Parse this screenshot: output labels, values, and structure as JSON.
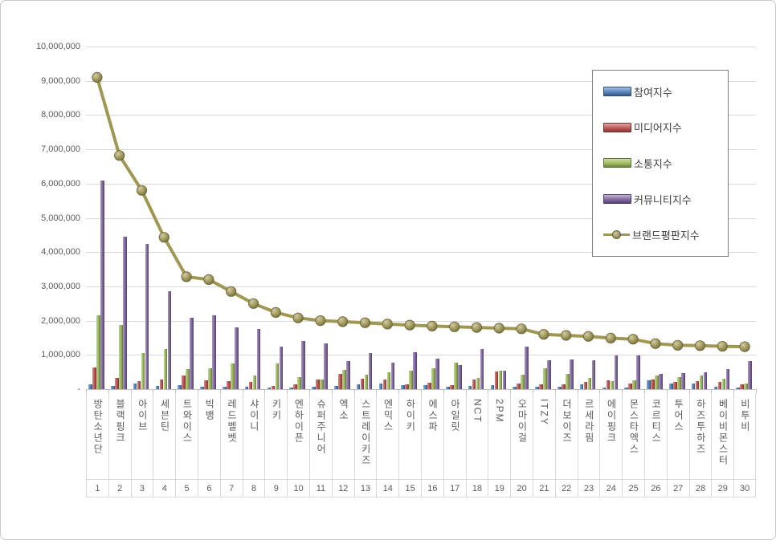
{
  "chart_data": {
    "type": "bar+line",
    "title": "",
    "categories": [
      "방탄소년단",
      "블랙핑크",
      "아이브",
      "세븐틴",
      "트와이스",
      "빅뱅",
      "레드벨벳",
      "샤이니",
      "키키",
      "엔하이픈",
      "슈퍼주니어",
      "엑소",
      "스트레이키즈",
      "엔믹스",
      "하이키",
      "에스파",
      "아일릿",
      "NCT",
      "2PM",
      "오마이걸",
      "ITZY",
      "더보이즈",
      "르세라핌",
      "에이핑크",
      "몬스타엑스",
      "코르티스",
      "투어스",
      "하즈투하즈",
      "베이비몬스터",
      "비투비"
    ],
    "rank_labels": [
      "1",
      "2",
      "3",
      "4",
      "5",
      "6",
      "7",
      "8",
      "9",
      "10",
      "11",
      "12",
      "13",
      "14",
      "15",
      "16",
      "17",
      "18",
      "19",
      "20",
      "21",
      "22",
      "23",
      "24",
      "25",
      "26",
      "27",
      "28",
      "29",
      "30"
    ],
    "series": [
      {
        "name": "참여지수",
        "type": "bar",
        "color": "#4F81BD",
        "values": [
          140000,
          100000,
          160000,
          100000,
          120000,
          60000,
          70000,
          60000,
          50000,
          50000,
          60000,
          100000,
          140000,
          170000,
          110000,
          120000,
          70000,
          90000,
          120000,
          70000,
          80000,
          80000,
          140000,
          50000,
          50000,
          250000,
          170000,
          170000,
          80000,
          50000
        ]
      },
      {
        "name": "미디어지수",
        "type": "bar",
        "color": "#C0504D",
        "values": [
          630000,
          330000,
          240000,
          280000,
          400000,
          260000,
          230000,
          220000,
          100000,
          140000,
          290000,
          450000,
          300000,
          270000,
          150000,
          180000,
          120000,
          270000,
          520000,
          170000,
          130000,
          140000,
          210000,
          250000,
          170000,
          280000,
          200000,
          230000,
          200000,
          130000
        ]
      },
      {
        "name": "소통지수",
        "type": "bar",
        "color": "#9BBB59",
        "values": [
          2150000,
          1870000,
          1050000,
          1170000,
          580000,
          600000,
          760000,
          400000,
          740000,
          350000,
          280000,
          560000,
          420000,
          500000,
          550000,
          620000,
          780000,
          320000,
          550000,
          420000,
          600000,
          440000,
          330000,
          230000,
          250000,
          400000,
          350000,
          390000,
          310000,
          170000
        ]
      },
      {
        "name": "커뮤니티지수",
        "type": "bar",
        "color": "#8064A2",
        "values": [
          6100000,
          4450000,
          4250000,
          2850000,
          2080000,
          2150000,
          1800000,
          1750000,
          1250000,
          1400000,
          1330000,
          820000,
          1050000,
          780000,
          1070000,
          900000,
          700000,
          1170000,
          530000,
          1230000,
          840000,
          860000,
          840000,
          980000,
          980000,
          450000,
          470000,
          490000,
          580000,
          820000
        ]
      },
      {
        "name": "브랜드평판지수",
        "type": "line",
        "color": "#A09752",
        "values": [
          9100000,
          6820000,
          5800000,
          4430000,
          3280000,
          3200000,
          2850000,
          2500000,
          2240000,
          2080000,
          2000000,
          1970000,
          1940000,
          1900000,
          1870000,
          1840000,
          1820000,
          1800000,
          1780000,
          1760000,
          1600000,
          1570000,
          1540000,
          1490000,
          1460000,
          1330000,
          1280000,
          1270000,
          1250000,
          1240000
        ]
      }
    ],
    "ylim": [
      0,
      10000000
    ],
    "ytick_step": 1000000,
    "ytick_labels": [
      "-",
      "1,000,000",
      "2,000,000",
      "3,000,000",
      "4,000,000",
      "5,000,000",
      "6,000,000",
      "7,000,000",
      "8,000,000",
      "9,000,000",
      "10,000,000"
    ],
    "grid": true,
    "legend_position": "upper-right-inside",
    "background_color": "#FFFFFF",
    "gridline_color": "#D9D9D9",
    "axis_text_color": "#595959"
  }
}
